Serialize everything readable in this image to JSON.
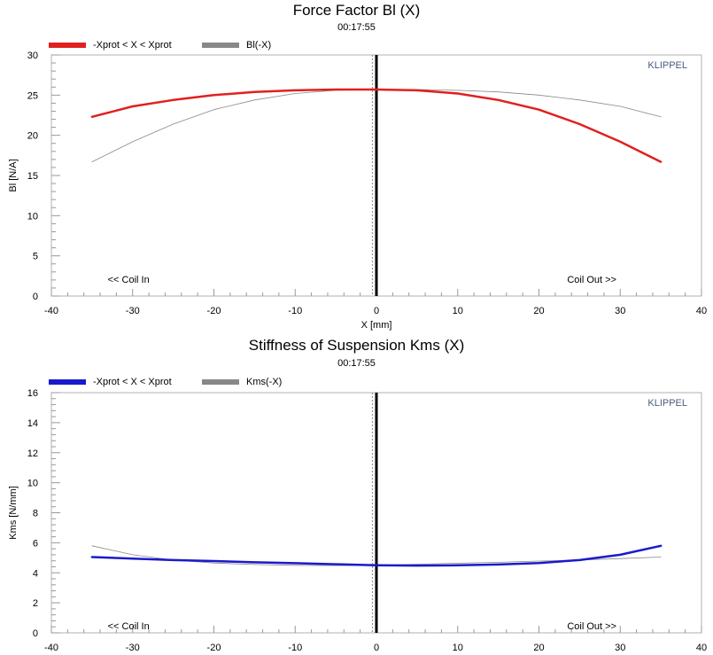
{
  "chart_data": [
    {
      "type": "line",
      "title": "Force Factor Bl (X)",
      "subtitle": "00:17:55",
      "xlabel": "X [mm]",
      "ylabel": "Bl [N/A]",
      "xlim": [
        -40,
        40
      ],
      "ylim": [
        0,
        30
      ],
      "xticks": [
        -40,
        -30,
        -20,
        -10,
        0,
        10,
        20,
        30,
        40
      ],
      "yticks": [
        0,
        5,
        10,
        15,
        20,
        25,
        30
      ],
      "grid": false,
      "watermark": "KLIPPEL",
      "annotations": [
        "<< Coil In",
        "Coil Out >>"
      ],
      "legend_position": "top-left",
      "series": [
        {
          "name": "-Xprot < X < Xprot",
          "color": "#e02020",
          "x": [
            -35,
            -30,
            -25,
            -20,
            -15,
            -10,
            -5,
            0,
            5,
            10,
            15,
            20,
            25,
            30,
            35
          ],
          "y": [
            22.3,
            23.6,
            24.4,
            25.0,
            25.4,
            25.6,
            25.7,
            25.7,
            25.6,
            25.2,
            24.4,
            23.2,
            21.4,
            19.2,
            16.7
          ]
        },
        {
          "name": "Bl(-X)",
          "color": "#888888",
          "x": [
            -35,
            -30,
            -25,
            -20,
            -15,
            -10,
            -5,
            0,
            5,
            10,
            15,
            20,
            25,
            30,
            35
          ],
          "y": [
            16.7,
            19.2,
            21.4,
            23.2,
            24.4,
            25.2,
            25.6,
            25.7,
            25.7,
            25.6,
            25.4,
            25.0,
            24.4,
            23.6,
            22.3
          ]
        }
      ]
    },
    {
      "type": "line",
      "title": "Stiffness of Suspension Kms (X)",
      "subtitle": "00:17:55",
      "xlabel": "",
      "ylabel": "Kms [N/mm]",
      "xlim": [
        -40,
        40
      ],
      "ylim": [
        0,
        16
      ],
      "xticks": [
        -40,
        -30,
        -20,
        -10,
        0,
        10,
        20,
        30,
        40
      ],
      "yticks": [
        0,
        2,
        4,
        6,
        8,
        10,
        12,
        14,
        16
      ],
      "grid": false,
      "watermark": "KLIPPEL",
      "annotations": [
        "<< Coil In",
        "Coil Out >>"
      ],
      "legend_position": "top-left",
      "series": [
        {
          "name": "-Xprot < X < Xprot",
          "color": "#1a1acc",
          "x": [
            -35,
            -30,
            -25,
            -20,
            -15,
            -10,
            -5,
            0,
            5,
            10,
            15,
            20,
            25,
            30,
            35
          ],
          "y": [
            5.05,
            4.95,
            4.85,
            4.78,
            4.7,
            4.64,
            4.57,
            4.5,
            4.48,
            4.5,
            4.55,
            4.65,
            4.85,
            5.2,
            5.8
          ]
        },
        {
          "name": "Kms(-X)",
          "color": "#888888",
          "x": [
            -35,
            -30,
            -25,
            -20,
            -15,
            -10,
            -5,
            0,
            5,
            10,
            15,
            20,
            25,
            30,
            35
          ],
          "y": [
            5.8,
            5.2,
            4.85,
            4.65,
            4.55,
            4.5,
            4.48,
            4.5,
            4.57,
            4.64,
            4.7,
            4.78,
            4.85,
            4.95,
            5.05
          ]
        }
      ]
    }
  ]
}
